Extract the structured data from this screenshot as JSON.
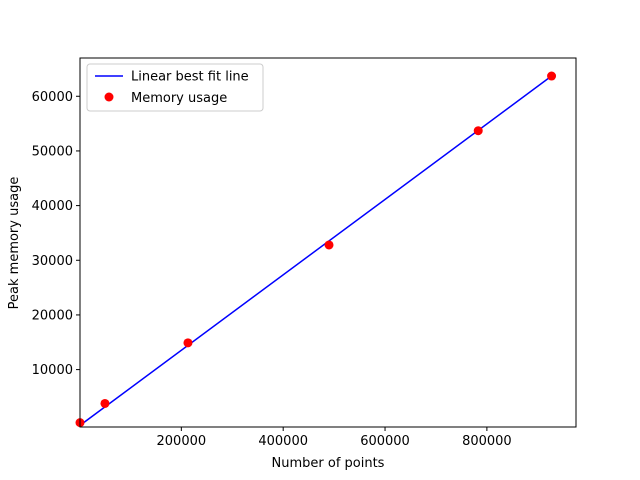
{
  "chart_data": {
    "type": "scatter",
    "xlabel": "Number of points",
    "ylabel": "Peak memory usage",
    "xlim": [
      1000,
      975000
    ],
    "ylim": [
      -500,
      67000
    ],
    "xticks": [
      200000,
      400000,
      600000,
      800000
    ],
    "xtick_labels": [
      "200000",
      "400000",
      "600000",
      "800000"
    ],
    "yticks": [
      10000,
      20000,
      30000,
      40000,
      50000,
      60000
    ],
    "ytick_labels": [
      "10000",
      "20000",
      "30000",
      "40000",
      "50000",
      "60000"
    ],
    "grid": false,
    "legend_position": "upper left",
    "series": [
      {
        "name": "Linear best fit line",
        "kind": "line",
        "color": "#0000ff",
        "x": [
          1000,
          927000
        ],
        "y": [
          -200,
          63700
        ]
      },
      {
        "name": "Memory usage",
        "kind": "scatter",
        "color": "#ff0000",
        "x": [
          1000,
          50000,
          213000,
          490000,
          783000,
          927000
        ],
        "y": [
          300,
          3800,
          14900,
          32800,
          53700,
          63700
        ]
      }
    ]
  }
}
